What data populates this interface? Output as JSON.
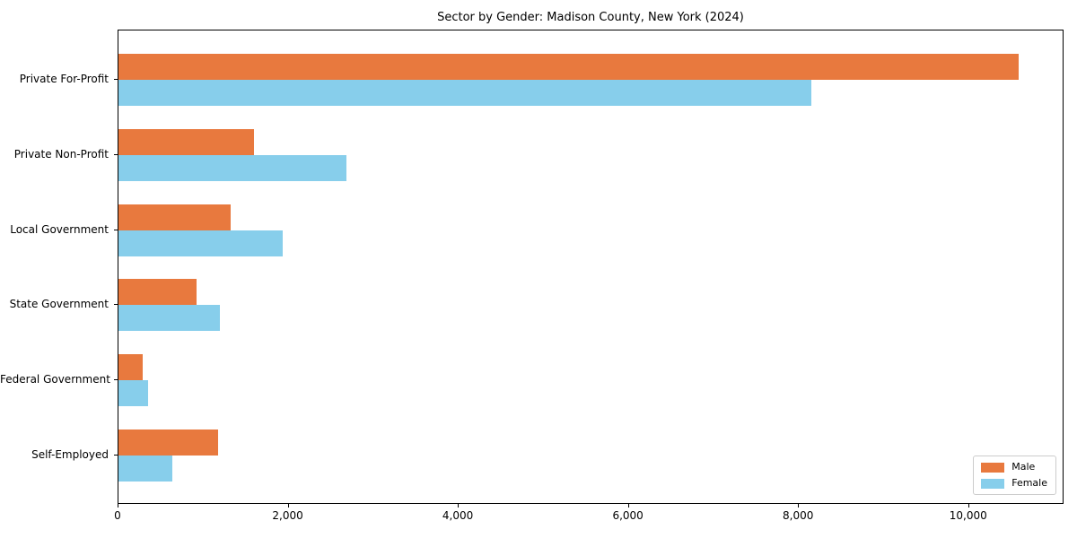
{
  "chart_data": {
    "type": "bar",
    "orientation": "horizontal",
    "title": "Sector by Gender: Madison County, New York (2024)",
    "categories": [
      "Private For-Profit",
      "Private Non-Profit",
      "Local Government",
      "State Government",
      "Federal Government",
      "Self-Employed"
    ],
    "series": [
      {
        "name": "Male",
        "color": "#E8793E",
        "values": [
          10580,
          1590,
          1320,
          920,
          290,
          1170
        ]
      },
      {
        "name": "Female",
        "color": "#87CEEB",
        "values": [
          8150,
          2680,
          1930,
          1190,
          350,
          630
        ]
      }
    ],
    "xlim": [
      0,
      11100
    ],
    "xticks": [
      0,
      2000,
      4000,
      6000,
      8000,
      10000
    ],
    "xtick_labels": [
      "0",
      "2,000",
      "4,000",
      "6,000",
      "8,000",
      "10,000"
    ],
    "xlabel": "",
    "ylabel": "",
    "grid": false,
    "legend_position": "lower right"
  }
}
